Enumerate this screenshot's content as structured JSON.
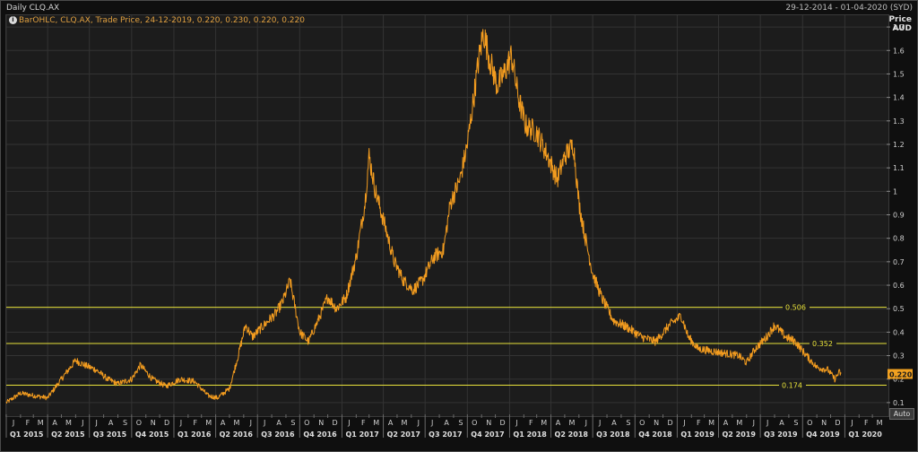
{
  "header": {
    "title": "Daily CLQ.AX",
    "date_range": "29-12-2014 - 01-04-2020 (SYD)"
  },
  "legend": {
    "icon": "info-icon",
    "text": "BarOHLC, CLQ.AX, Trade Price, 24-12-2019, 0.220, 0.230, 0.220, 0.220"
  },
  "axis": {
    "title_line1": "Price",
    "title_line2": "AUD",
    "auto_label": "Auto"
  },
  "colors": {
    "series": "#f39c1f",
    "hline": "#e8e23a",
    "grid": "#333333",
    "tag_bg": "#f0a020"
  },
  "chart_data": {
    "type": "line",
    "title": "Daily CLQ.AX",
    "ylabel": "Price AUD",
    "ylim": [
      0.05,
      1.75
    ],
    "yticks": [
      "0.1",
      "0.2",
      "0.3",
      "0.4",
      "0.5",
      "0.6",
      "0.7",
      "0.8",
      "0.9",
      "1",
      "1.1",
      "1.2",
      "1.3",
      "1.4",
      "1.5",
      "1.6",
      "1.7"
    ],
    "xlim": [
      "2015-01-01",
      "2020-04-01"
    ],
    "month_labels": [
      "J",
      "F",
      "M",
      "A",
      "M",
      "J",
      "J",
      "A",
      "S",
      "O",
      "N",
      "D",
      "J",
      "F",
      "M",
      "A",
      "M",
      "J",
      "J",
      "A",
      "S",
      "O",
      "N",
      "D",
      "J",
      "F",
      "M",
      "A",
      "M",
      "J",
      "J",
      "A",
      "S",
      "O",
      "N",
      "D",
      "J",
      "F",
      "M",
      "A",
      "M",
      "J",
      "J",
      "A",
      "S",
      "O",
      "N",
      "D",
      "J",
      "F",
      "M",
      "A",
      "M",
      "J",
      "J",
      "A",
      "S",
      "O",
      "N",
      "D",
      "J",
      "F",
      "M"
    ],
    "quarter_labels": [
      "Q1 2015",
      "Q2 2015",
      "Q3 2015",
      "Q4 2015",
      "Q1 2016",
      "Q2 2016",
      "Q3 2016",
      "Q4 2016",
      "Q1 2017",
      "Q2 2017",
      "Q3 2017",
      "Q4 2017",
      "Q1 2018",
      "Q2 2018",
      "Q3 2018",
      "Q4 2018",
      "Q1 2019",
      "Q2 2019",
      "Q3 2019",
      "Q4 2019",
      "Q1 2020"
    ],
    "series": [
      {
        "x": [
          "2015-01-01",
          "2015-02-01",
          "2015-03-01",
          "2015-04-01",
          "2015-05-01",
          "2015-06-01",
          "2015-06-20",
          "2015-07-15",
          "2015-08-10",
          "2015-09-01",
          "2015-10-01",
          "2015-10-20",
          "2015-11-15",
          "2015-12-15",
          "2016-01-15",
          "2016-02-15",
          "2016-03-15",
          "2016-04-05",
          "2016-05-01",
          "2016-05-20",
          "2016-06-05",
          "2016-06-20",
          "2016-07-10",
          "2016-08-10",
          "2016-08-25",
          "2016-09-10",
          "2016-10-01",
          "2016-10-20",
          "2016-11-10",
          "2016-12-01",
          "2016-12-20",
          "2017-01-10",
          "2017-02-01",
          "2017-02-20",
          "2017-03-01",
          "2017-03-15",
          "2017-04-05",
          "2017-04-25",
          "2017-05-15",
          "2017-06-05",
          "2017-06-25",
          "2017-07-20",
          "2017-08-10",
          "2017-08-25",
          "2017-09-15",
          "2017-10-01",
          "2017-10-15",
          "2017-10-25",
          "2017-11-05",
          "2017-11-20",
          "2017-12-05",
          "2017-12-20",
          "2018-01-05",
          "2018-01-20",
          "2018-02-05",
          "2018-03-01",
          "2018-03-25",
          "2018-04-15",
          "2018-05-01",
          "2018-05-20",
          "2018-06-01",
          "2018-06-15",
          "2018-07-01",
          "2018-07-20",
          "2018-08-15",
          "2018-09-15",
          "2018-10-15",
          "2018-11-15",
          "2018-12-15",
          "2019-01-10",
          "2019-01-25",
          "2019-02-15",
          "2019-03-15",
          "2019-04-15",
          "2019-05-15",
          "2019-06-01",
          "2019-06-20",
          "2019-07-15",
          "2019-08-01",
          "2019-08-25",
          "2019-09-15",
          "2019-10-01",
          "2019-11-01",
          "2019-11-25",
          "2019-12-10",
          "2019-12-20",
          "2019-12-24"
        ],
        "values": [
          0.1,
          0.14,
          0.13,
          0.12,
          0.2,
          0.28,
          0.26,
          0.24,
          0.2,
          0.18,
          0.2,
          0.26,
          0.2,
          0.17,
          0.2,
          0.19,
          0.13,
          0.12,
          0.16,
          0.3,
          0.43,
          0.38,
          0.42,
          0.48,
          0.53,
          0.62,
          0.4,
          0.36,
          0.45,
          0.55,
          0.5,
          0.55,
          0.72,
          0.95,
          1.15,
          1.0,
          0.85,
          0.7,
          0.62,
          0.58,
          0.62,
          0.72,
          0.75,
          0.95,
          1.05,
          1.2,
          1.4,
          1.55,
          1.68,
          1.55,
          1.45,
          1.5,
          1.58,
          1.4,
          1.28,
          1.25,
          1.15,
          1.05,
          1.15,
          1.2,
          0.95,
          0.8,
          0.65,
          0.55,
          0.45,
          0.42,
          0.38,
          0.36,
          0.43,
          0.47,
          0.38,
          0.33,
          0.32,
          0.31,
          0.3,
          0.27,
          0.33,
          0.38,
          0.43,
          0.38,
          0.36,
          0.32,
          0.25,
          0.24,
          0.2,
          0.23,
          0.22
        ]
      }
    ],
    "hlines": [
      {
        "value": 0.506,
        "label": "0.506"
      },
      {
        "value": 0.352,
        "label": "0.352"
      },
      {
        "value": 0.174,
        "label": "0.174"
      }
    ],
    "last_price": {
      "value": 0.22,
      "label": "0.220"
    }
  }
}
